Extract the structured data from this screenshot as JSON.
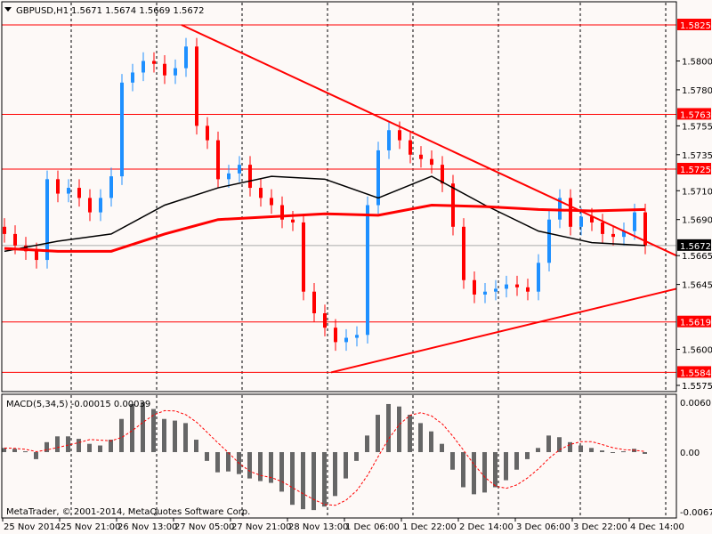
{
  "header": {
    "symbol": "GBPUSD,H1",
    "ohlc": "1.5671 1.5674 1.5669 1.5672"
  },
  "macd_label": "MACD(5,34,5) -0.00015 0.00039",
  "copyright": "MetaTrader, © 2001-2014, MetaQuotes Software Corp.",
  "colors": {
    "background": "#fdf9f7",
    "bull": "#1e90ff",
    "bear": "#ff0000",
    "level": "#ff0000",
    "ma_fast": "#000000",
    "ma_slow": "#ff0000",
    "histogram": "#666666",
    "signal": "#ff0000",
    "current": "#000000"
  },
  "chart_data": [
    {
      "type": "candlestick",
      "title": "GBPUSD,H1",
      "ylim": [
        1.5565,
        1.5845
      ],
      "y_ticks": [
        "1.5800",
        "1.5780",
        "1.5755",
        "1.5735",
        "1.5710",
        "1.5690",
        "1.5665",
        "1.5645",
        "1.5600",
        "1.5575"
      ],
      "x_ticks": [
        "25 Nov 2014",
        "25 Nov 21:00",
        "26 Nov 13:00",
        "27 Nov 05:00",
        "27 Nov 21:00",
        "28 Nov 13:00",
        "1 Dec 06:00",
        "1 Dec 22:00",
        "2 Dec 14:00",
        "3 Dec 06:00",
        "3 Dec 22:00",
        "4 Dec 14:00"
      ],
      "close": [
        1.568,
        1.5672,
        1.5668,
        1.5662,
        1.5718,
        1.5708,
        1.5712,
        1.5705,
        1.5695,
        1.5705,
        1.572,
        1.5785,
        1.5792,
        1.58,
        1.5798,
        1.579,
        1.5795,
        1.581,
        1.5755,
        1.5745,
        1.5718,
        1.5722,
        1.5728,
        1.5712,
        1.5705,
        1.57,
        1.569,
        1.5688,
        1.564,
        1.5625,
        1.5615,
        1.5605,
        1.5608,
        1.561,
        1.57,
        1.5738,
        1.5752,
        1.5745,
        1.5735,
        1.5732,
        1.5728,
        1.5715,
        1.5685,
        1.5648,
        1.5638,
        1.564,
        1.5642,
        1.5645,
        1.5643,
        1.564,
        1.566,
        1.569,
        1.5705,
        1.5685,
        1.5692,
        1.5688,
        1.568,
        1.5678,
        1.5682,
        1.5695,
        1.5672
      ],
      "ma_fast": [
        1.5668,
        1.5675,
        1.568,
        1.57,
        1.5712,
        1.572,
        1.5718,
        1.5705,
        1.572,
        1.57,
        1.5682,
        1.5674,
        1.5672
      ],
      "ma_slow": [
        1.567,
        1.5668,
        1.5668,
        1.568,
        1.569,
        1.5692,
        1.5694,
        1.5693,
        1.57,
        1.5699,
        1.5697,
        1.5696,
        1.5697
      ],
      "levels": [
        "1.5825",
        "1.5763",
        "1.5725",
        "1.5619",
        "1.5584"
      ],
      "current_price": "1.5672",
      "trendlines": [
        {
          "from": [
            17,
            1.5825
          ],
          "to": [
            63,
            1.5665
          ]
        },
        {
          "from": [
            31,
            1.5584
          ],
          "to": [
            63,
            1.5642
          ]
        }
      ]
    },
    {
      "type": "bar",
      "title": "MACD(5,34,5) -0.00015 0.00039",
      "ylim": [
        -0.00679,
        0.00601
      ],
      "y_ticks": [
        "0.00601",
        "0.00",
        "-0.00679"
      ],
      "histogram": [
        0.0005,
        0.0004,
        0.0001,
        -0.0008,
        0.0012,
        0.0019,
        0.0019,
        0.0016,
        0.001,
        0.0008,
        0.0015,
        0.004,
        0.0058,
        0.006,
        0.0052,
        0.004,
        0.0038,
        0.0035,
        0.0015,
        -0.001,
        -0.0023,
        -0.0022,
        -0.0025,
        -0.003,
        -0.0033,
        -0.0035,
        -0.0045,
        -0.006,
        -0.0065,
        -0.0066,
        -0.0062,
        -0.005,
        -0.003,
        -0.001,
        0.002,
        0.0045,
        0.0058,
        0.0055,
        0.0045,
        0.0035,
        0.0025,
        0.001,
        -0.002,
        -0.004,
        -0.0048,
        -0.0046,
        -0.004,
        -0.0032,
        -0.002,
        -0.0008,
        0.0005,
        0.002,
        0.0018,
        0.0012,
        0.0008,
        0.0005,
        0.0002,
        -0.0001,
        0.0001,
        0.0004,
        -0.0002
      ]
    }
  ]
}
